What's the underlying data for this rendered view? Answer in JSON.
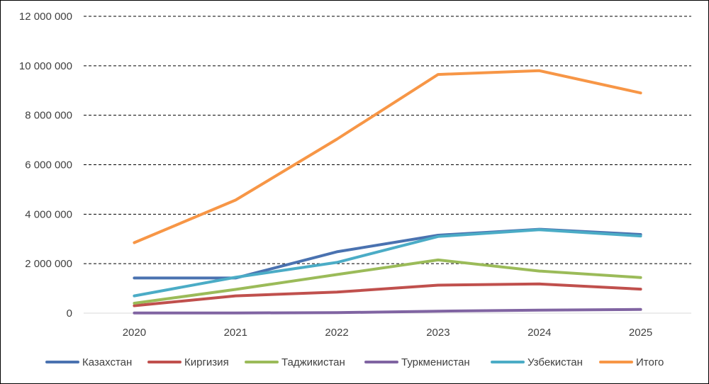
{
  "chart_data": {
    "type": "line",
    "title": "",
    "xlabel": "",
    "ylabel": "",
    "x": [
      "2020",
      "2021",
      "2022",
      "2023",
      "2024",
      "2025"
    ],
    "ylim": [
      0,
      12000000
    ],
    "yticks": [
      0,
      2000000,
      4000000,
      6000000,
      8000000,
      10000000,
      12000000
    ],
    "ytick_labels": [
      "0",
      "2 000 000",
      "4 000 000",
      "6 000 000",
      "8 000 000",
      "10 000 000",
      "12 000 000"
    ],
    "grid": "horizontal-dashed",
    "legend_position": "bottom",
    "series": [
      {
        "name": "Казахстан",
        "color": "#4a72b0",
        "values": [
          1420000,
          1420000,
          2480000,
          3150000,
          3390000,
          3180000
        ]
      },
      {
        "name": "Киргизия",
        "color": "#c0504d",
        "values": [
          300000,
          700000,
          850000,
          1130000,
          1180000,
          970000
        ]
      },
      {
        "name": "Таджикистан",
        "color": "#9bbb59",
        "values": [
          400000,
          960000,
          1560000,
          2150000,
          1700000,
          1440000
        ]
      },
      {
        "name": "Туркменистан",
        "color": "#8064a2",
        "values": [
          10000,
          10000,
          20000,
          80000,
          120000,
          150000
        ]
      },
      {
        "name": "Узбекистан",
        "color": "#4bacc6",
        "values": [
          700000,
          1450000,
          2050000,
          3100000,
          3370000,
          3120000
        ]
      },
      {
        "name": "Итого",
        "color": "#f79646",
        "values": [
          2850000,
          4570000,
          7030000,
          9650000,
          9800000,
          8900000
        ]
      }
    ]
  }
}
